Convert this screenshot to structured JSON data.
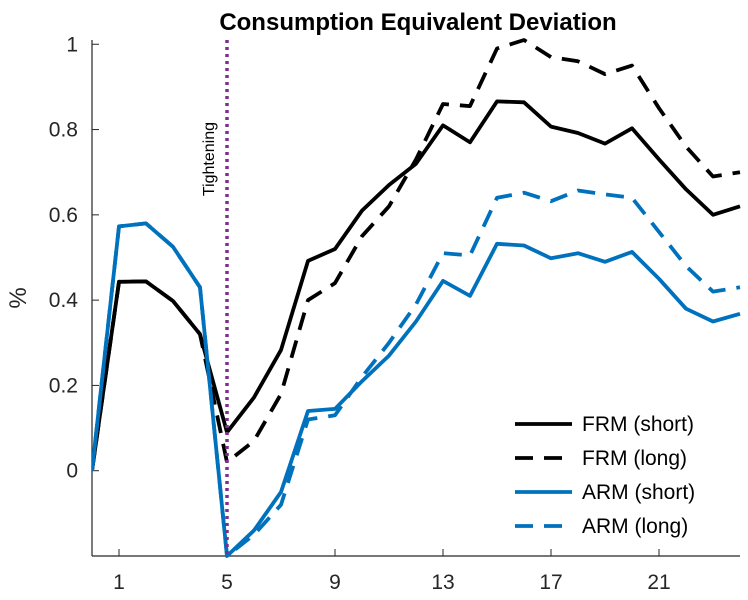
{
  "chart_data": {
    "type": "line",
    "title": "Consumption Equivalent Deviation",
    "xlabel": "",
    "ylabel": "%",
    "xlim": [
      0,
      24
    ],
    "ylim": [
      -0.2,
      1.01
    ],
    "xticks": [
      1,
      5,
      9,
      13,
      17,
      21
    ],
    "yticks": [
      0,
      0.2,
      0.4,
      0.6,
      0.8,
      1
    ],
    "ytick_labels": [
      "0",
      "0.2",
      "0.4",
      "0.6",
      "0.8",
      "1"
    ],
    "xtick_labels": [
      "1",
      "5",
      "9",
      "13",
      "17",
      "21"
    ],
    "grid": false,
    "legend_position": "bottom-right",
    "annotation": {
      "text": "Tightening",
      "x": 5,
      "color": "#7E2F8E"
    },
    "x": [
      0,
      1,
      2,
      3,
      4,
      5,
      6,
      7,
      8,
      9,
      10,
      11,
      12,
      13,
      14,
      15,
      16,
      17,
      18,
      19,
      20,
      21,
      22,
      23,
      24
    ],
    "series": [
      {
        "name": "FRM (short)",
        "color": "#000000",
        "dash": "solid",
        "values": [
          0.0,
          0.443,
          0.444,
          0.398,
          0.32,
          0.09,
          0.172,
          0.283,
          0.492,
          0.52,
          0.61,
          0.67,
          0.72,
          0.81,
          0.77,
          0.866,
          0.864,
          0.807,
          0.792,
          0.767,
          0.803,
          0.73,
          0.66,
          0.6,
          0.62
        ]
      },
      {
        "name": "FRM (long)",
        "color": "#000000",
        "dash": "dashed",
        "values": [
          0.0,
          0.443,
          0.444,
          0.398,
          0.32,
          0.02,
          0.07,
          0.18,
          0.4,
          0.44,
          0.55,
          0.62,
          0.73,
          0.86,
          0.855,
          0.99,
          1.01,
          0.97,
          0.96,
          0.93,
          0.95,
          0.85,
          0.76,
          0.69,
          0.7
        ]
      },
      {
        "name": "ARM (short)",
        "color": "#0072BD",
        "dash": "solid",
        "values": [
          0.0,
          0.573,
          0.58,
          0.525,
          0.43,
          -0.2,
          -0.14,
          -0.05,
          0.14,
          0.145,
          0.21,
          0.27,
          0.35,
          0.445,
          0.41,
          0.532,
          0.528,
          0.498,
          0.51,
          0.49,
          0.513,
          0.45,
          0.38,
          0.35,
          0.368
        ]
      },
      {
        "name": "ARM (long)",
        "color": "#0072BD",
        "dash": "dashed",
        "values": [
          0.0,
          0.573,
          0.58,
          0.525,
          0.43,
          -0.2,
          -0.15,
          -0.08,
          0.12,
          0.13,
          0.22,
          0.3,
          0.39,
          0.51,
          0.505,
          0.64,
          0.652,
          0.632,
          0.657,
          0.648,
          0.64,
          0.56,
          0.48,
          0.42,
          0.43
        ]
      }
    ]
  }
}
